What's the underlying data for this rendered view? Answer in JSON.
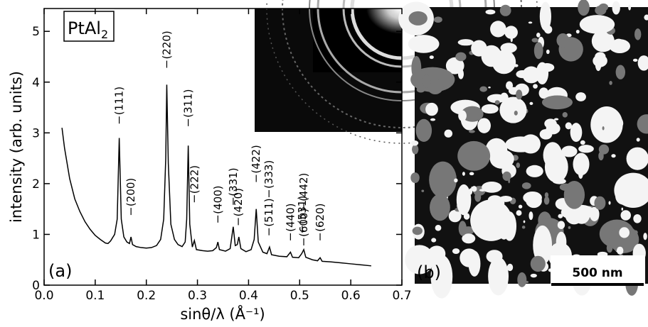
{
  "chart_data": {
    "type": "line",
    "xlabel": "sinθ/λ (Å⁻¹)",
    "ylabel": "intensity (arb. units)",
    "sample_label": "PtAl",
    "sample_label_sub": "2",
    "panel_a": "(a)",
    "panel_b": "(b)",
    "scale_bar": "500 nm",
    "xlim": [
      0,
      0.7
    ],
    "ylim": [
      0,
      5.45
    ],
    "xticks": [
      {
        "value": 0,
        "label": "0.0"
      },
      0.1,
      0.2,
      0.3,
      0.4,
      0.5,
      0.6,
      0.7
    ],
    "yticks": [
      0,
      1,
      2,
      3,
      4,
      5
    ],
    "color": "#000000",
    "x": [
      0.035,
      0.04,
      0.05,
      0.06,
      0.07,
      0.08,
      0.09,
      0.1,
      0.11,
      0.12,
      0.125,
      0.13,
      0.138,
      0.143,
      0.147,
      0.151,
      0.156,
      0.162,
      0.167,
      0.17,
      0.173,
      0.18,
      0.19,
      0.2,
      0.21,
      0.22,
      0.228,
      0.234,
      0.238,
      0.24,
      0.243,
      0.248,
      0.255,
      0.262,
      0.27,
      0.276,
      0.279,
      0.282,
      0.285,
      0.29,
      0.294,
      0.298,
      0.31,
      0.32,
      0.33,
      0.337,
      0.34,
      0.343,
      0.355,
      0.364,
      0.37,
      0.374,
      0.378,
      0.381,
      0.385,
      0.395,
      0.405,
      0.411,
      0.415,
      0.419,
      0.428,
      0.436,
      0.441,
      0.445,
      0.46,
      0.475,
      0.482,
      0.486,
      0.498,
      0.504,
      0.508,
      0.512,
      0.525,
      0.535,
      0.54,
      0.544,
      0.56,
      0.58,
      0.6,
      0.62,
      0.64
    ],
    "values": [
      3.1,
      2.7,
      2.1,
      1.7,
      1.45,
      1.25,
      1.1,
      0.98,
      0.9,
      0.83,
      0.82,
      0.87,
      1.0,
      1.3,
      2.9,
      1.3,
      0.95,
      0.85,
      0.82,
      0.95,
      0.8,
      0.76,
      0.74,
      0.73,
      0.74,
      0.78,
      0.9,
      1.3,
      2.5,
      3.95,
      2.4,
      1.2,
      0.9,
      0.8,
      0.76,
      0.85,
      1.3,
      2.75,
      1.2,
      0.75,
      0.88,
      0.7,
      0.68,
      0.67,
      0.68,
      0.74,
      0.85,
      0.7,
      0.67,
      0.72,
      1.15,
      0.78,
      0.8,
      0.95,
      0.72,
      0.66,
      0.7,
      0.9,
      1.5,
      0.85,
      0.65,
      0.62,
      0.75,
      0.6,
      0.57,
      0.56,
      0.65,
      0.55,
      0.54,
      0.62,
      0.7,
      0.55,
      0.5,
      0.48,
      0.54,
      0.47,
      0.46,
      0.44,
      0.42,
      0.4,
      0.38
    ],
    "annotations": [
      {
        "text": "(111)",
        "x": 0.147,
        "y": 3.35
      },
      {
        "text": "(200)",
        "x": 0.17,
        "y": 1.55
      },
      {
        "text": "(220)",
        "x": 0.24,
        "y": 4.45
      },
      {
        "text": "(311)",
        "x": 0.282,
        "y": 3.3
      },
      {
        "text": "(222)",
        "x": 0.294,
        "y": 1.8
      },
      {
        "text": "(400)",
        "x": 0.34,
        "y": 1.4
      },
      {
        "text": "(331)",
        "x": 0.37,
        "y": 1.75
      },
      {
        "text": "(420)",
        "x": 0.38,
        "y": 1.35
      },
      {
        "text": "(422)",
        "x": 0.415,
        "y": 2.2
      },
      {
        "text": "(511)",
        "x": 0.44,
        "y": 1.15
      },
      {
        "text": "(333)",
        "x": 0.44,
        "y": 1.9
      },
      {
        "text": "(440)",
        "x": 0.482,
        "y": 1.05
      },
      {
        "text": "(531)",
        "x": 0.505,
        "y": 1.2
      },
      {
        "text": "(600)",
        "x": 0.508,
        "y": 0.95
      },
      {
        "text": "(442)",
        "x": 0.508,
        "y": 1.65
      },
      {
        "text": "(620)",
        "x": 0.54,
        "y": 1.05
      }
    ]
  }
}
